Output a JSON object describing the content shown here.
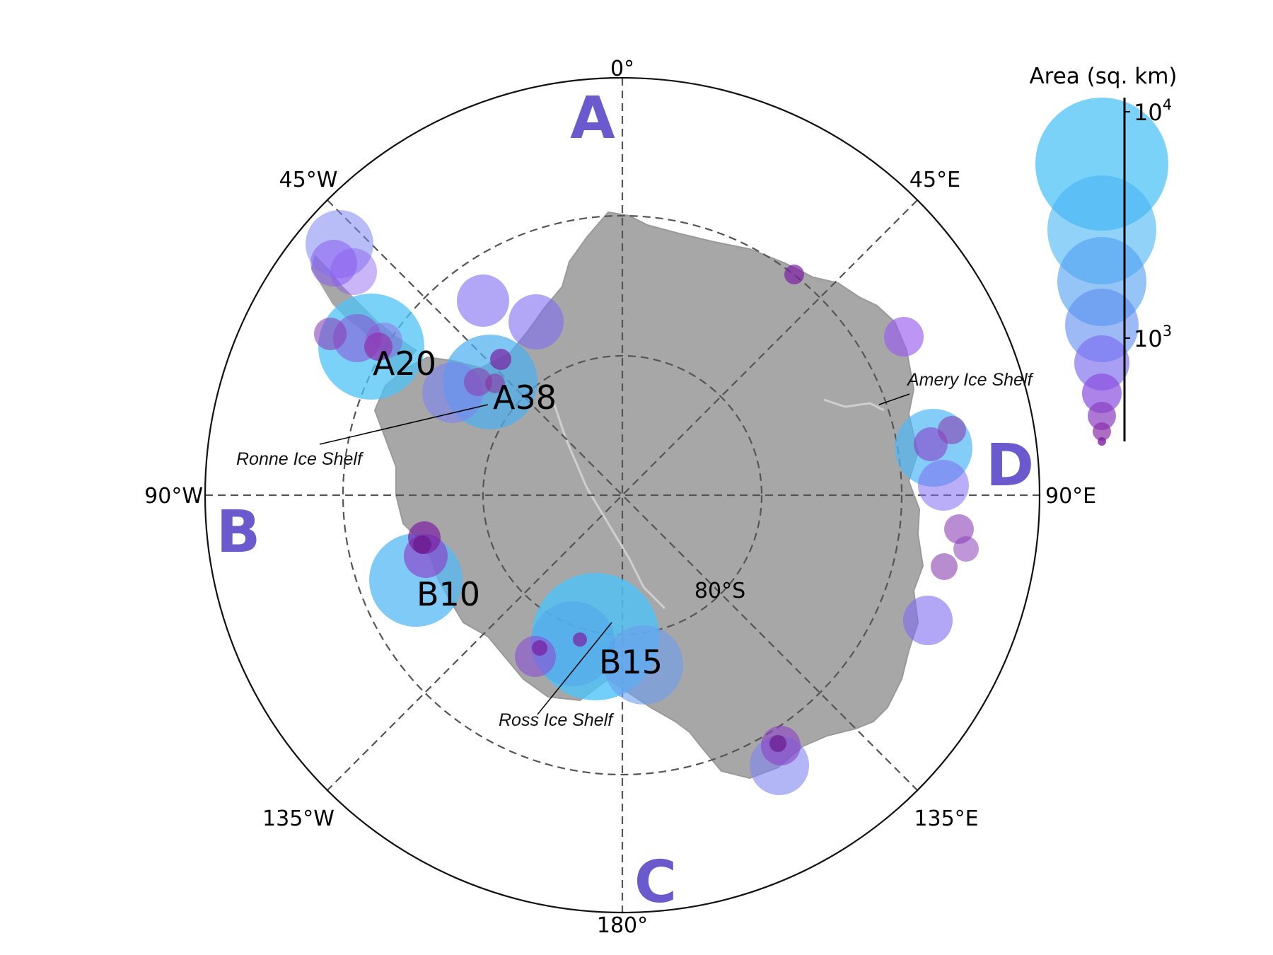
{
  "map": {
    "projection": "south polar stereographic",
    "latitude_circles": [
      "80°S"
    ],
    "meridian_labels": {
      "top": "0°",
      "top_right": "45°E",
      "right": "90°E",
      "bottom_right": "135°E",
      "bottom": "180°",
      "bottom_left": "135°W",
      "left": "90°W",
      "top_left": "45°W"
    },
    "lat_label": "80°S",
    "sector_labels": {
      "a": "A",
      "b": "B",
      "c": "C",
      "d": "D"
    },
    "iceberg_labels": {
      "a20": "A20",
      "a38": "A38",
      "b10": "B10",
      "b15": "B15"
    },
    "shelf_labels": {
      "ronne": "Ronne Ice Shelf",
      "amery": "Amery Ice Shelf",
      "ross": "Ross Ice Shelf"
    },
    "colors": {
      "land": "#a7a7a7",
      "sector_label": "#6a5acd",
      "large_bubble": "#4fc3f7",
      "small_bubble": "#7b1fa2"
    }
  },
  "legend": {
    "title": "Area (sq. km)",
    "tick_upper": "10",
    "tick_upper_exp": "4",
    "tick_lower": "10",
    "tick_lower_exp": "3"
  },
  "chart_data": {
    "type": "scatter",
    "title": "",
    "size_variable": "Area (sq. km)",
    "size_scale": "log",
    "note": "Iceberg positions shown as bubbles on Antarctic polar map; bubble size/colour encode area (log scale, roughly 10^2.5 to 10^4 sq. km).",
    "named_icebergs": [
      "A20",
      "A38",
      "B10",
      "B15"
    ],
    "sectors": [
      "A",
      "B",
      "C",
      "D"
    ]
  }
}
